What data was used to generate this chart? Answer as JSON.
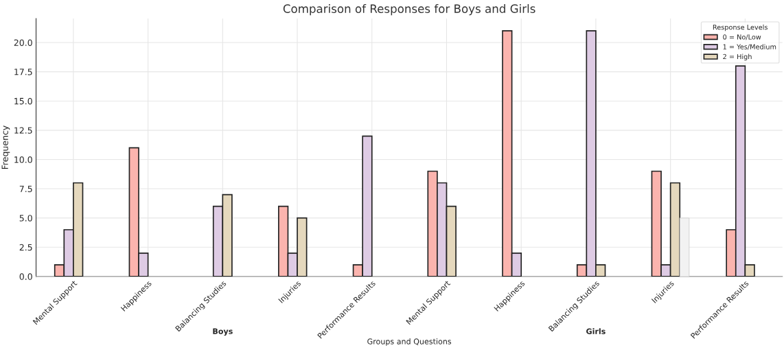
{
  "chart_data": {
    "type": "bar",
    "title": "Comparison of Responses for Boys and Girls",
    "xlabel": "Groups and Questions",
    "ylabel": "Frequency",
    "legend_title": "Response Levels",
    "categories": [
      "Mental Support",
      "Happiness",
      "Balancing Studies",
      "Injuries",
      "Performance Results",
      "Mental Support",
      "Happiness",
      "Balancing Studies",
      "Injuries",
      "Performance Results"
    ],
    "series": [
      {
        "name": "0 = No/Low",
        "color": "#fbb4ae",
        "values": [
          1,
          11,
          null,
          6,
          1,
          9,
          21,
          1,
          9,
          4
        ]
      },
      {
        "name": "1 = Yes/Medium",
        "color": "#decbe4",
        "values": [
          4,
          2,
          6,
          2,
          12,
          8,
          2,
          21,
          1,
          18
        ]
      },
      {
        "name": "2 = High",
        "color": "#e5d8bd",
        "values": [
          8,
          null,
          7,
          5,
          null,
          6,
          null,
          1,
          8,
          1
        ]
      },
      {
        "color": "#f2f2f2",
        "values": [
          null,
          null,
          null,
          null,
          null,
          null,
          null,
          null,
          5,
          null
        ]
      }
    ],
    "annotations": [
      "Boys",
      "Girls"
    ],
    "ylim": [
      0,
      22.05
    ],
    "yticks": [
      {
        "value": 0,
        "label": "0.0"
      },
      {
        "value": 2.5,
        "label": "2.5"
      },
      {
        "value": 5,
        "label": "5.0"
      },
      {
        "value": 7.5,
        "label": "7.5"
      },
      {
        "value": 10,
        "label": "10.0"
      },
      {
        "value": 12.5,
        "label": "12.5"
      },
      {
        "value": 15,
        "label": "15.0"
      },
      {
        "value": 17.5,
        "label": "17.5"
      },
      {
        "value": 20,
        "label": "20.0"
      }
    ],
    "grid": true,
    "legend": "top right"
  }
}
